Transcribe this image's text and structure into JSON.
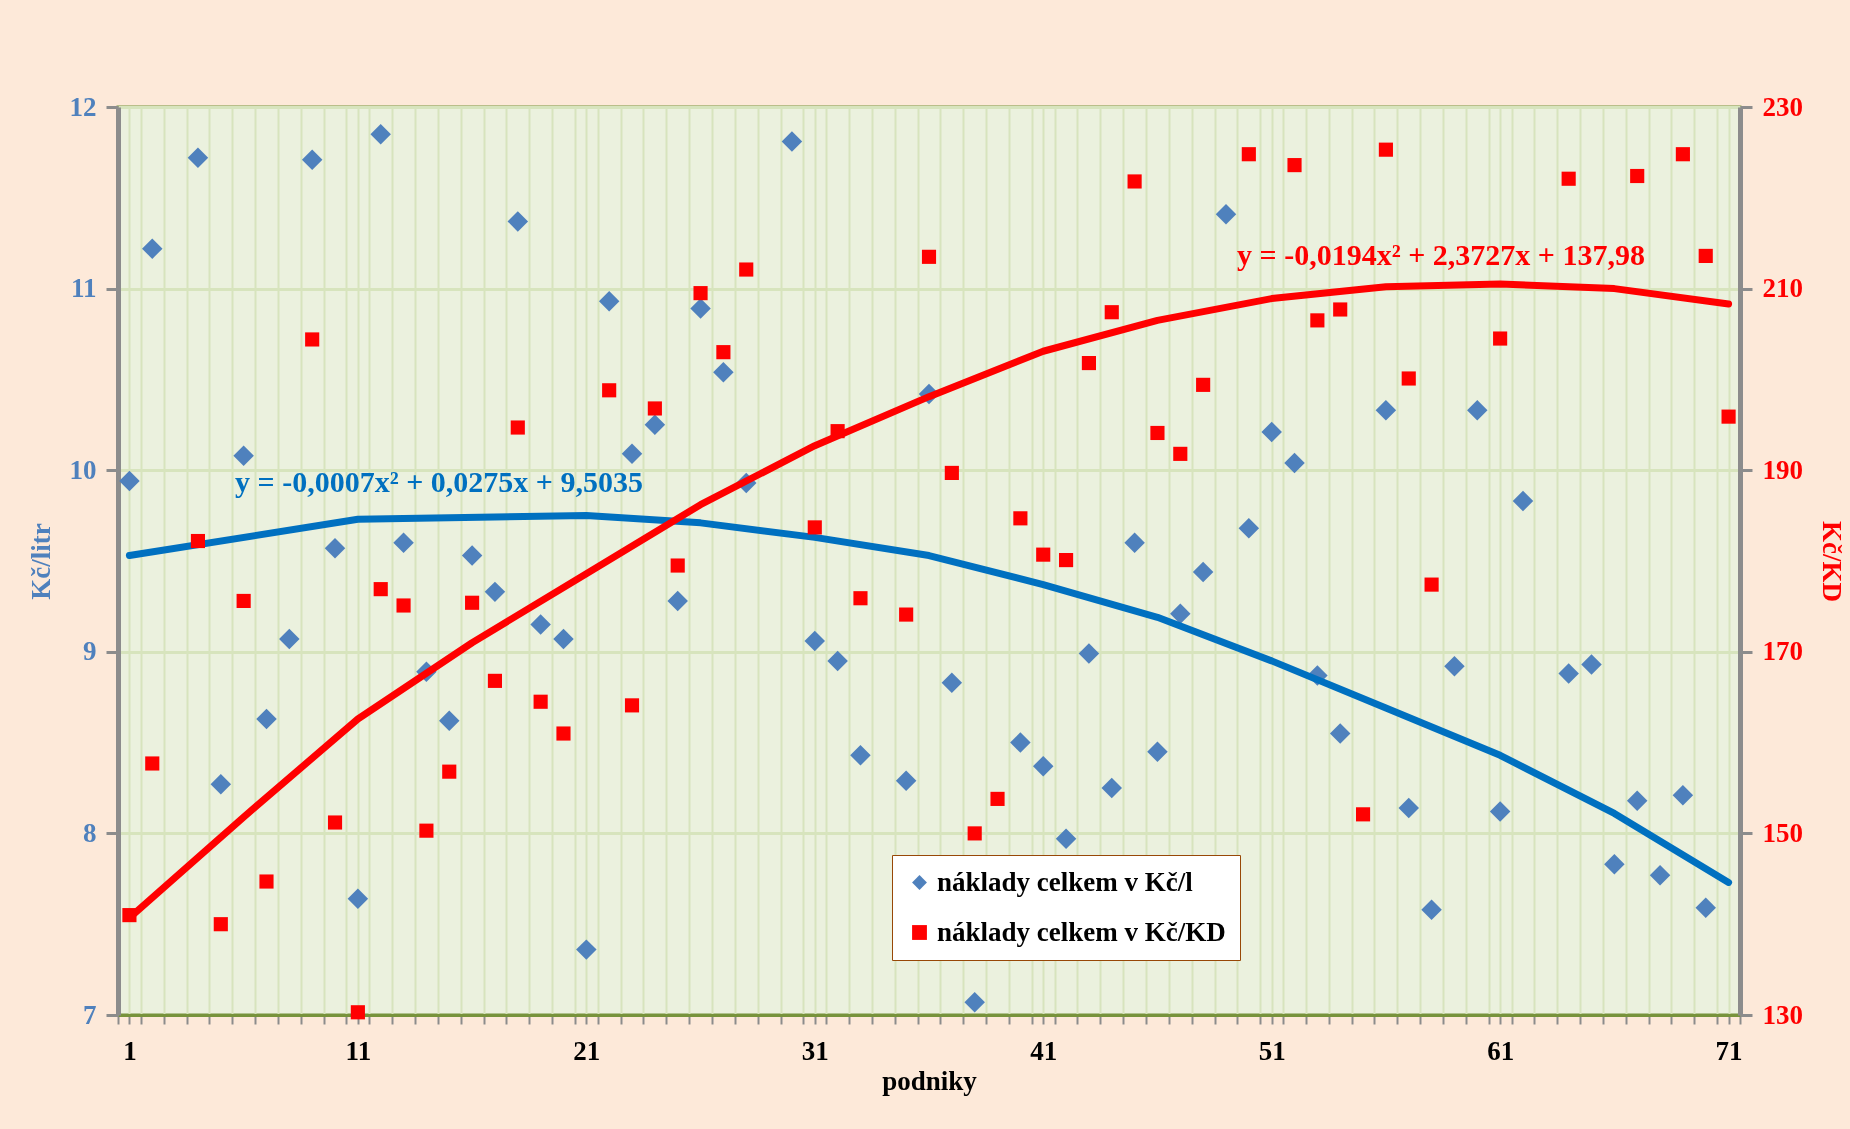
{
  "chart_data": {
    "type": "scatter",
    "xlabel": "podniky",
    "ylabel": "Kč/litr",
    "y2label": "Kč/KD",
    "x": [
      1,
      2,
      3,
      4,
      5,
      6,
      7,
      8,
      9,
      10,
      11,
      12,
      13,
      14,
      15,
      16,
      17,
      18,
      19,
      20,
      21,
      22,
      23,
      24,
      25,
      26,
      27,
      28,
      29,
      30,
      31,
      32,
      33,
      34,
      35,
      36,
      37,
      38,
      39,
      40,
      41,
      42,
      43,
      44,
      45,
      46,
      47,
      48,
      49,
      50,
      51,
      52,
      53,
      54,
      55,
      56,
      57,
      58,
      59,
      60,
      61,
      62,
      63,
      64,
      65,
      66,
      67,
      68,
      69,
      70,
      71
    ],
    "xlim": [
      0.5,
      71.5
    ],
    "xticks": [
      1,
      11,
      21,
      31,
      41,
      51,
      61,
      71,
      {
        "value": 0.5,
        "label": null
      },
      {
        "value": 1.5,
        "label": null
      },
      {
        "value": 2.5,
        "label": null
      },
      {
        "value": 3.5,
        "label": null
      },
      {
        "value": 4.5,
        "label": null
      },
      {
        "value": 5.5,
        "label": null
      },
      {
        "value": 6.5,
        "label": null
      },
      {
        "value": 7.5,
        "label": null
      },
      {
        "value": 8.5,
        "label": null
      },
      {
        "value": 9.5,
        "label": null
      },
      {
        "value": 10.5,
        "label": null
      },
      {
        "value": 11.5,
        "label": null
      },
      {
        "value": 12.5,
        "label": null
      },
      {
        "value": 13.5,
        "label": null
      },
      {
        "value": 14.5,
        "label": null
      },
      {
        "value": 15.5,
        "label": null
      },
      {
        "value": 16.5,
        "label": null
      },
      {
        "value": 17.5,
        "label": null
      },
      {
        "value": 18.5,
        "label": null
      },
      {
        "value": 19.5,
        "label": null
      },
      {
        "value": 20.5,
        "label": null
      },
      {
        "value": 21.5,
        "label": null
      },
      {
        "value": 22.5,
        "label": null
      },
      {
        "value": 23.5,
        "label": null
      },
      {
        "value": 24.5,
        "label": null
      },
      {
        "value": 25.5,
        "label": null
      },
      {
        "value": 26.5,
        "label": null
      },
      {
        "value": 27.5,
        "label": null
      },
      {
        "value": 28.5,
        "label": null
      },
      {
        "value": 29.5,
        "label": null
      },
      {
        "value": 30.5,
        "label": null
      },
      {
        "value": 31.5,
        "label": null
      },
      {
        "value": 32.5,
        "label": null
      },
      {
        "value": 33.5,
        "label": null
      },
      {
        "value": 34.5,
        "label": null
      },
      {
        "value": 35.5,
        "label": null
      },
      {
        "value": 36.5,
        "label": null
      },
      {
        "value": 37.5,
        "label": null
      },
      {
        "value": 38.5,
        "label": null
      },
      {
        "value": 39.5,
        "label": null
      },
      {
        "value": 40.5,
        "label": null
      },
      {
        "value": 41.5,
        "label": null
      },
      {
        "value": 42.5,
        "label": null
      },
      {
        "value": 43.5,
        "label": null
      },
      {
        "value": 44.5,
        "label": null
      },
      {
        "value": 45.5,
        "label": null
      },
      {
        "value": 46.5,
        "label": null
      },
      {
        "value": 47.5,
        "label": null
      },
      {
        "value": 48.5,
        "label": null
      },
      {
        "value": 49.5,
        "label": null
      },
      {
        "value": 50.5,
        "label": null
      },
      {
        "value": 51.5,
        "label": null
      },
      {
        "value": 52.5,
        "label": null
      },
      {
        "value": 53.5,
        "label": null
      },
      {
        "value": 54.5,
        "label": null
      },
      {
        "value": 55.5,
        "label": null
      },
      {
        "value": 56.5,
        "label": null
      },
      {
        "value": 57.5,
        "label": null
      },
      {
        "value": 58.5,
        "label": null
      },
      {
        "value": 59.5,
        "label": null
      },
      {
        "value": 60.5,
        "label": null
      },
      {
        "value": 61.5,
        "label": null
      },
      {
        "value": 62.5,
        "label": null
      },
      {
        "value": 63.5,
        "label": null
      },
      {
        "value": 64.5,
        "label": null
      },
      {
        "value": 65.5,
        "label": null
      },
      {
        "value": 66.5,
        "label": null
      },
      {
        "value": 67.5,
        "label": null
      },
      {
        "value": 68.5,
        "label": null
      },
      {
        "value": 69.5,
        "label": null
      },
      {
        "value": 70.5,
        "label": null
      },
      {
        "value": 71.5,
        "label": null
      }
    ],
    "ylim": [
      7,
      12
    ],
    "yticks": [
      7,
      8,
      9,
      10,
      11,
      12
    ],
    "y2lim": [
      130,
      230
    ],
    "y2ticks": [
      130,
      150,
      170,
      190,
      210,
      230
    ],
    "grid": true,
    "legend": "bottom right",
    "annotations": [
      "y = -0,0007x² + 0,0275x + 9,5035",
      "y = -0,0194x² + 2,3727x + 137,98"
    ],
    "series": [
      {
        "name": "náklady celkem v Kč/l",
        "marker": "diamond",
        "color": "#4f81bd",
        "values": [
          9.94,
          11.22,
          null,
          11.72,
          8.27,
          10.08,
          8.63,
          9.07,
          11.71,
          9.57,
          7.64,
          11.85,
          9.6,
          8.89,
          8.62,
          9.53,
          9.33,
          11.37,
          9.15,
          9.07,
          7.36,
          10.93,
          10.09,
          10.25,
          9.28,
          10.89,
          10.54,
          9.93,
          null,
          11.81,
          9.06,
          8.95,
          8.43,
          null,
          8.29,
          10.42,
          8.83,
          7.07,
          null,
          8.5,
          8.37,
          7.97,
          8.99,
          8.25,
          9.6,
          8.45,
          9.21,
          9.44,
          11.41,
          9.68,
          10.21,
          10.04,
          8.87,
          8.55,
          null,
          10.33,
          8.14,
          7.58,
          8.92,
          10.33,
          8.12,
          9.83,
          null,
          8.88,
          8.93,
          7.83,
          8.18,
          7.77,
          8.21,
          7.59,
          null
        ]
      },
      {
        "name": "náklady celkem v Kč/KD",
        "marker": "square",
        "color": "#ff0000",
        "axis": "y2",
        "values": [
          141,
          157.7,
          null,
          182.2,
          140,
          175.6,
          144.7,
          null,
          204.4,
          151.2,
          130.3,
          176.9,
          175.1,
          150.3,
          156.8,
          175.4,
          166.8,
          194.7,
          164.5,
          161,
          null,
          198.8,
          164.1,
          196.8,
          179.5,
          209.5,
          203,
          212.1,
          null,
          null,
          183.7,
          194.3,
          175.9,
          null,
          174.1,
          213.5,
          189.7,
          150,
          153.8,
          184.7,
          180.7,
          180.1,
          201.8,
          207.4,
          221.8,
          194.1,
          191.8,
          199.4,
          null,
          224.8,
          null,
          223.6,
          206.5,
          207.7,
          152.1,
          225.3,
          200.1,
          177.4,
          null,
          null,
          204.5,
          null,
          null,
          222.1,
          null,
          null,
          222.4,
          null,
          224.8,
          213.6,
          195.9
        ]
      },
      {
        "type": "line",
        "color": "#0070c0",
        "x": [
          1,
          11,
          21,
          26,
          31,
          36,
          41,
          46,
          51,
          56,
          61,
          66,
          71
        ],
        "values": [
          9.53,
          9.73,
          9.75,
          9.71,
          9.63,
          9.53,
          9.37,
          9.19,
          8.95,
          8.69,
          8.43,
          8.11,
          7.73
        ]
      },
      {
        "type": "line",
        "color": "#ff0000",
        "axis": "y2",
        "x": [
          1,
          6,
          11,
          16,
          21,
          26,
          31,
          36,
          41,
          46,
          51,
          56,
          61,
          66,
          71
        ],
        "values": [
          140.7,
          151.8,
          162.6,
          171,
          178.6,
          186.2,
          192.7,
          198.1,
          203.1,
          206.5,
          208.9,
          210.2,
          210.5,
          210,
          208.3
        ]
      }
    ]
  }
}
